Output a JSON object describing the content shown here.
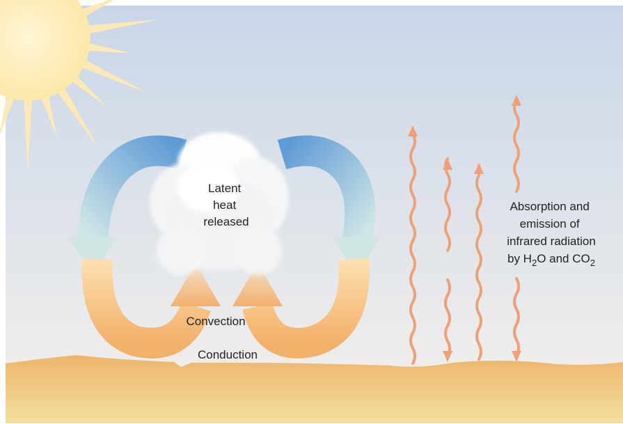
{
  "labels": {
    "latent_heat": [
      "Latent",
      "heat",
      "released"
    ],
    "convection": "Convection",
    "conduction": "Conduction",
    "radiation": {
      "lines": [
        "Absorption and",
        "emission of",
        "infrared radiation"
      ],
      "last_line": [
        "by H",
        "2",
        "O and CO",
        "2"
      ]
    }
  }
}
